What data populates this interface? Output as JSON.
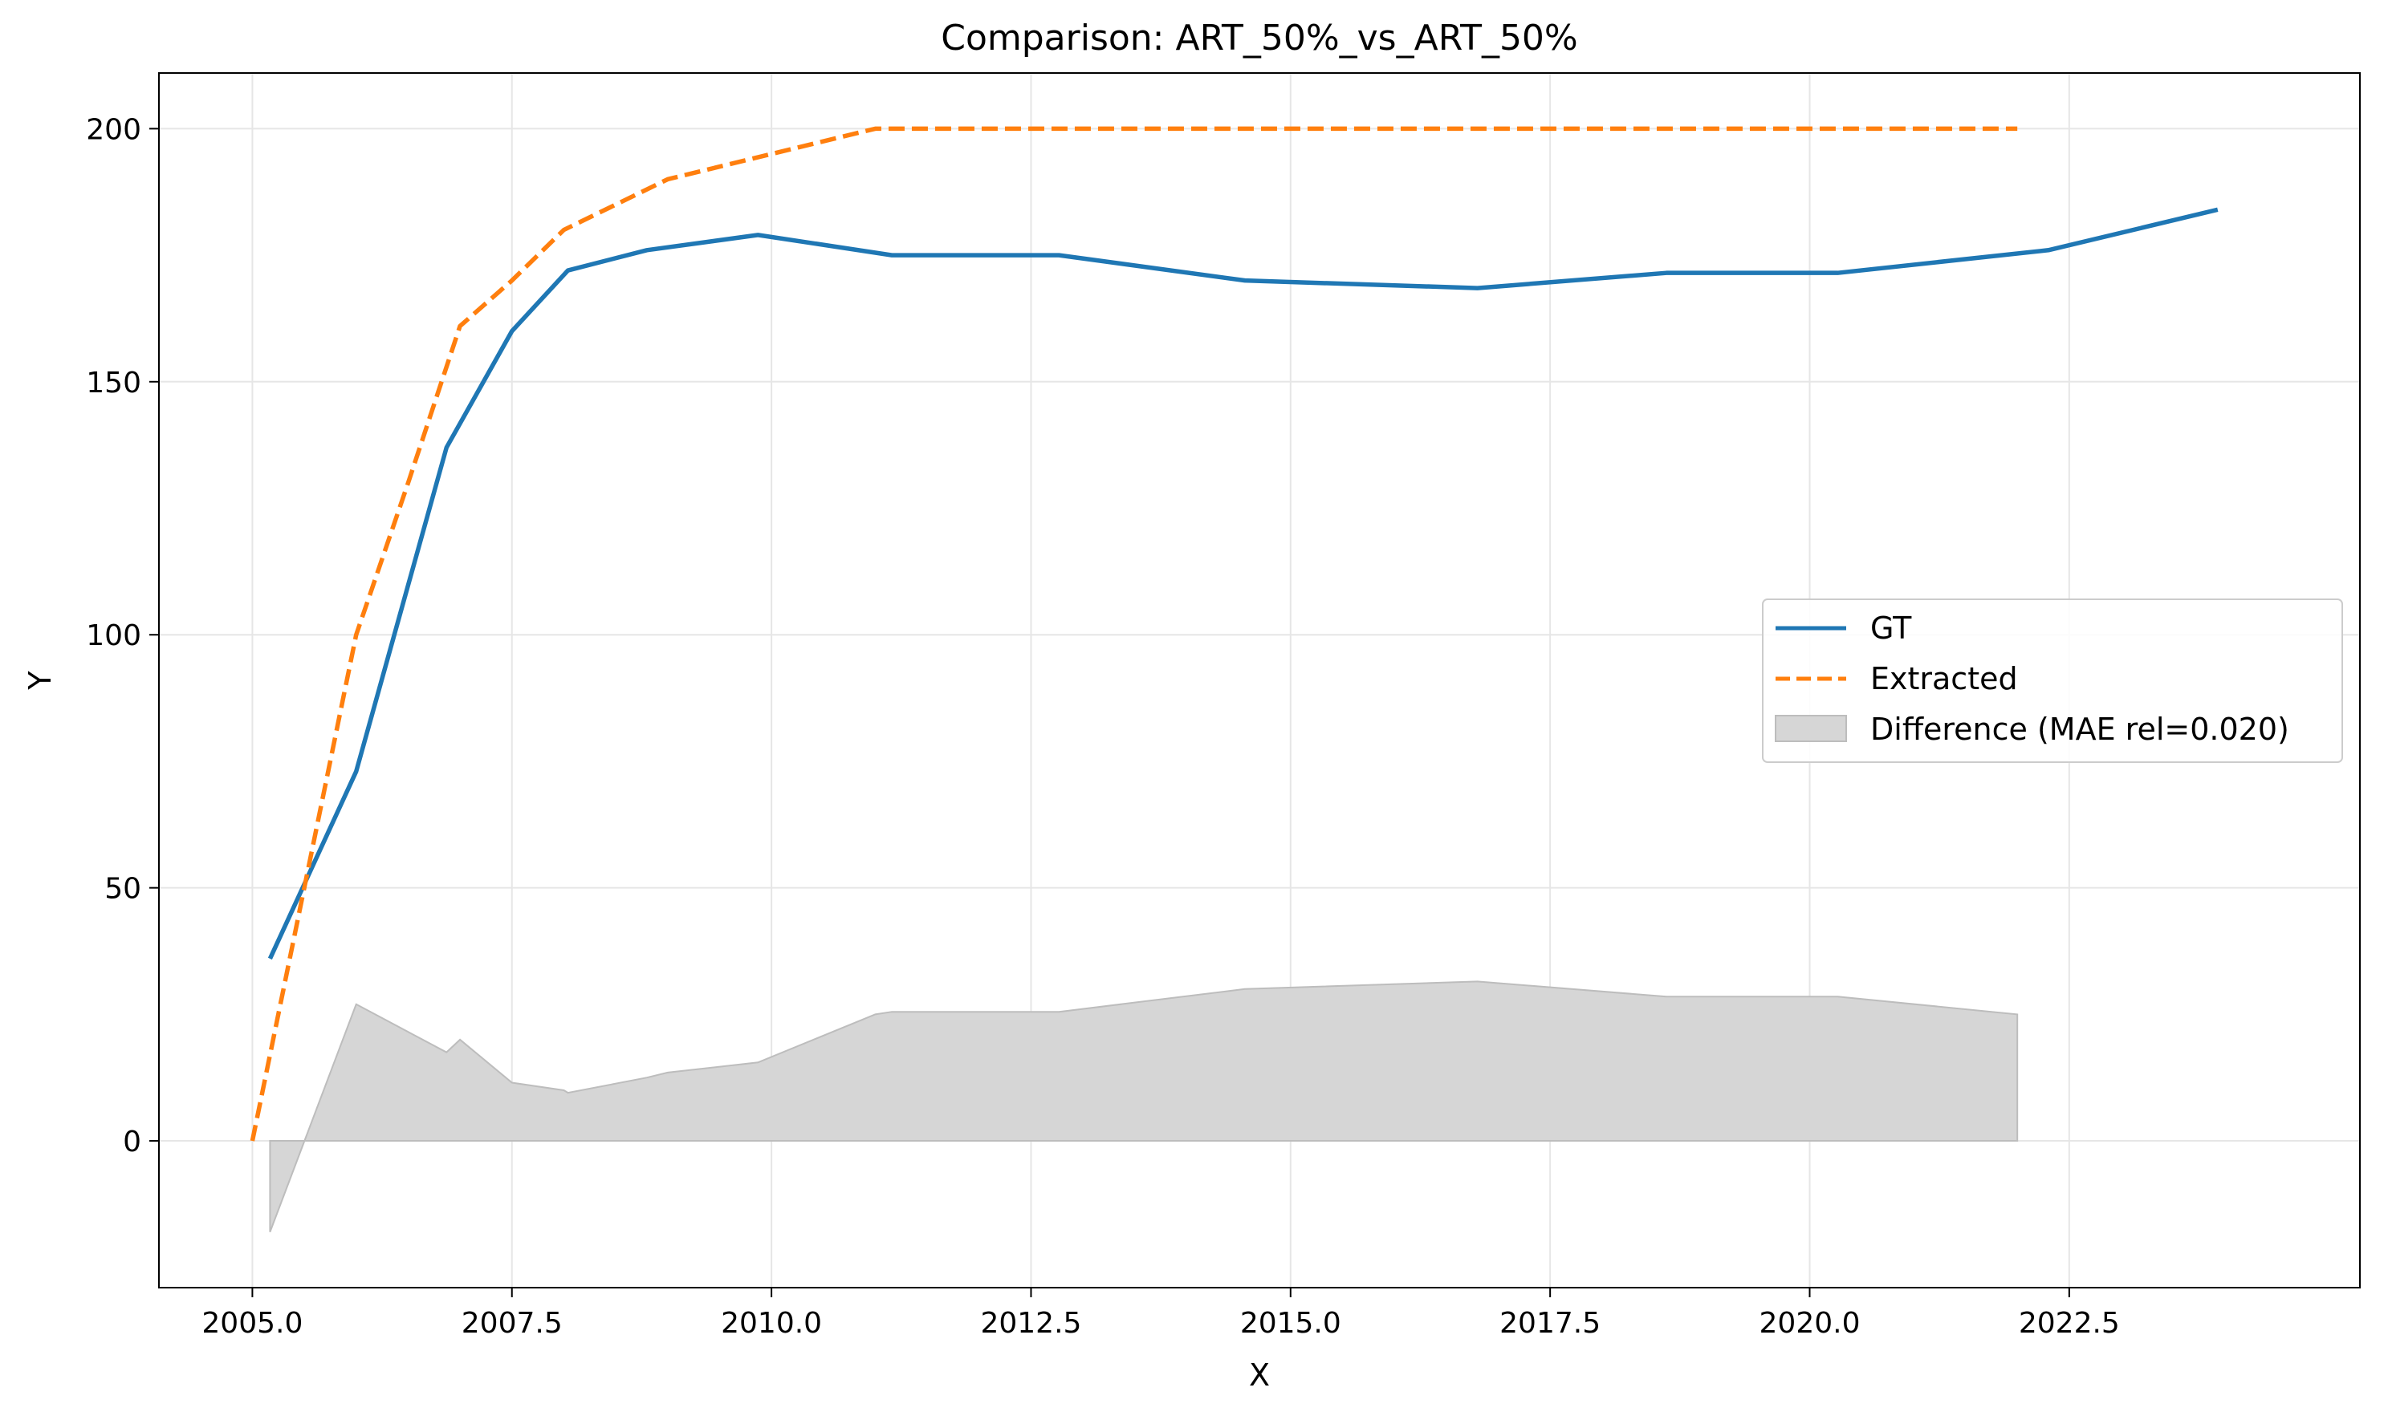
{
  "chart_data": {
    "type": "line",
    "title": "Comparison: ART_50%_vs_ART_50%",
    "xlabel": "X",
    "ylabel": "Y",
    "xlim": [
      2004.1,
      2025.3
    ],
    "ylim": [
      -29,
      211
    ],
    "xticks": [
      2005.0,
      2007.5,
      2010.0,
      2012.5,
      2015.0,
      2017.5,
      2020.0,
      2022.5
    ],
    "xtick_labels": [
      "2005.0",
      "2007.5",
      "2010.0",
      "2012.5",
      "2015.0",
      "2017.5",
      "2020.0",
      "2022.5"
    ],
    "yticks": [
      0,
      50,
      100,
      150,
      200
    ],
    "ytick_labels": [
      "0",
      "50",
      "100",
      "150",
      "200"
    ],
    "grid": true,
    "legend_position": "center-right",
    "series": [
      {
        "name": "GT",
        "style": "solid",
        "color": "#1f77b4",
        "x": [
          2005.17,
          2006.0,
          2006.87,
          2007.5,
          2008.04,
          2008.8,
          2009.87,
          2011.16,
          2012.77,
          2014.56,
          2016.8,
          2018.62,
          2020.27,
          2022.3,
          2023.93
        ],
        "y": [
          36,
          73,
          137,
          160,
          172,
          176,
          179,
          175,
          175,
          170,
          168.5,
          171.5,
          171.5,
          176,
          184
        ]
      },
      {
        "name": "Extracted",
        "style": "dashed",
        "color": "#ff7f0e",
        "x": [
          2005.0,
          2005.5,
          2006.0,
          2006.5,
          2007.0,
          2007.5,
          2008.0,
          2008.5,
          2009.0,
          2010.0,
          2011.0,
          2012.0,
          2013.0,
          2014.0,
          2015.0,
          2016.0,
          2017.0,
          2018.0,
          2019.0,
          2020.0,
          2021.0,
          2022.0
        ],
        "y": [
          0,
          50,
          100,
          130,
          161,
          170,
          180,
          185,
          190,
          195,
          200,
          200,
          200,
          200,
          200,
          200,
          200,
          200,
          200,
          200,
          200,
          200
        ]
      }
    ],
    "difference": {
      "name": "Difference (MAE rel=0.020)",
      "color": "#d6d6d6",
      "x": [
        2005.17,
        2006.0,
        2006.87,
        2007.0,
        2007.5,
        2008.0,
        2008.04,
        2008.8,
        2009.0,
        2009.87,
        2011.0,
        2011.16,
        2012.77,
        2014.56,
        2016.8,
        2018.62,
        2020.27,
        2022.0
      ],
      "y": [
        -18,
        27,
        17.5,
        20,
        11.5,
        10,
        9.5,
        12.5,
        13.5,
        15.5,
        25,
        25.5,
        25.5,
        30,
        31.5,
        28.5,
        28.5,
        25
      ]
    }
  }
}
